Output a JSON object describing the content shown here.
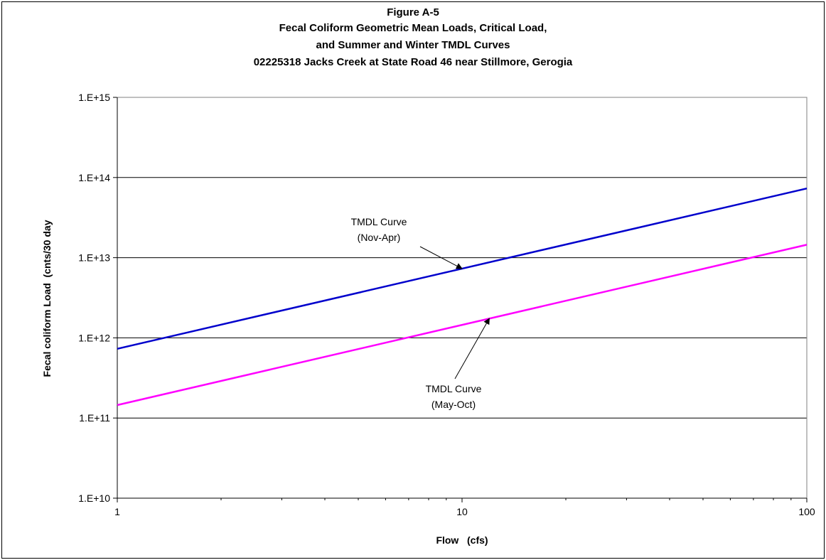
{
  "chart_data": {
    "type": "line",
    "title": [
      "Figure A-5",
      "Fecal Coliform Geometric Mean Loads,  Critical Load,",
      "and Summer and Winter TMDL Curves",
      "02225318  Jacks Creek at State Road 46 near Stillmore, Gerogia"
    ],
    "xlabel": "Flow   (cfs)",
    "ylabel": "Fecal coliform Load  (cnts/30 day",
    "x_scale": "log",
    "y_scale": "log",
    "xlim": [
      1,
      100
    ],
    "ylim": [
      10000000000.0,
      1000000000000000.0
    ],
    "x_ticks": [
      {
        "value": 1,
        "label": "1"
      },
      {
        "value": 10,
        "label": "10"
      },
      {
        "value": 100,
        "label": "100"
      }
    ],
    "y_ticks": [
      {
        "value": 10000000000.0,
        "label": "1.E+10"
      },
      {
        "value": 100000000000.0,
        "label": "1.E+11"
      },
      {
        "value": 1000000000000.0,
        "label": "1.E+12"
      },
      {
        "value": 10000000000000.0,
        "label": "1.E+13"
      },
      {
        "value": 100000000000000.0,
        "label": "1.E+14"
      },
      {
        "value": 1000000000000000.0,
        "label": "1.E+15"
      }
    ],
    "grid": "horizontal major gridlines",
    "series": [
      {
        "color": "#0000cc",
        "x": [
          1,
          100
        ],
        "y": [
          730000000000.0,
          73000000000000.0
        ]
      },
      {
        "color": "#ff00ff",
        "x": [
          1,
          100
        ],
        "y": [
          145000000000.0,
          14500000000000.0
        ]
      }
    ],
    "annotations": [
      {
        "lines": [
          "TMDL Curve",
          "(Nov-Apr)"
        ],
        "arrow_to": {
          "x": 10,
          "y": 7300000000000.0
        }
      },
      {
        "lines": [
          "TMDL Curve",
          "(May-Oct)"
        ],
        "arrow_to": {
          "x": 12,
          "y": 1750000000000.0
        }
      }
    ]
  }
}
